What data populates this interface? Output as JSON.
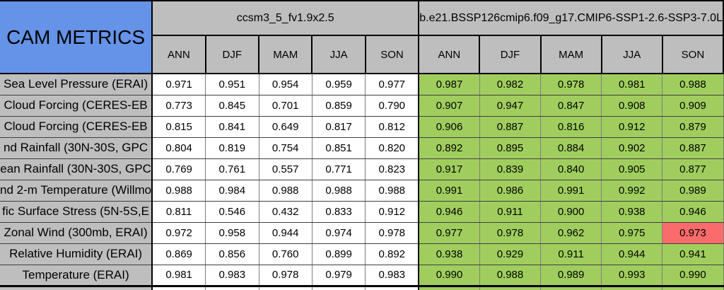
{
  "colors": {
    "blue": "#6493E8",
    "gray": "#BEBEBE",
    "green": "#A0CE5E",
    "red": "#FA6B6B"
  },
  "corner": {
    "title": "CAM METRICS"
  },
  "models": [
    {
      "name": "ccsm3_5_fv1.9x2.5",
      "seasons": [
        "ANN",
        "DJF",
        "MAM",
        "JJA",
        "SON"
      ]
    },
    {
      "name": "b.e21.BSSP126cmip6.f09_g17.CMIP6-SSP1-2.6-SSP3-7.0L",
      "seasons": [
        "ANN",
        "DJF",
        "MAM",
        "JJA",
        "SON"
      ]
    }
  ],
  "rows": [
    {
      "label": "Sea Level Pressure (ERAI)",
      "m1": [
        "0.971",
        "0.951",
        "0.954",
        "0.959",
        "0.977"
      ],
      "m2": [
        "0.987",
        "0.982",
        "0.978",
        "0.981",
        "0.988"
      ]
    },
    {
      "label": "Cloud Forcing (CERES-EB",
      "m1": [
        "0.773",
        "0.845",
        "0.701",
        "0.859",
        "0.790"
      ],
      "m2": [
        "0.907",
        "0.947",
        "0.847",
        "0.908",
        "0.909"
      ]
    },
    {
      "label": "Cloud Forcing (CERES-EB",
      "m1": [
        "0.815",
        "0.841",
        "0.649",
        "0.817",
        "0.812"
      ],
      "m2": [
        "0.906",
        "0.887",
        "0.816",
        "0.912",
        "0.879"
      ]
    },
    {
      "label": "nd Rainfall (30N-30S, GPC",
      "m1": [
        "0.804",
        "0.819",
        "0.754",
        "0.851",
        "0.820"
      ],
      "m2": [
        "0.892",
        "0.895",
        "0.884",
        "0.902",
        "0.887"
      ]
    },
    {
      "label": "ean Rainfall (30N-30S, GPC",
      "m1": [
        "0.769",
        "0.761",
        "0.557",
        "0.771",
        "0.823"
      ],
      "m2": [
        "0.917",
        "0.839",
        "0.840",
        "0.905",
        "0.877"
      ]
    },
    {
      "label": "nd 2-m Temperature (Willmo",
      "m1": [
        "0.988",
        "0.984",
        "0.988",
        "0.988",
        "0.988"
      ],
      "m2": [
        "0.991",
        "0.986",
        "0.991",
        "0.992",
        "0.989"
      ]
    },
    {
      "label": "fic Surface Stress (5N-5S,E",
      "m1": [
        "0.811",
        "0.546",
        "0.432",
        "0.833",
        "0.912"
      ],
      "m2": [
        "0.946",
        "0.911",
        "0.900",
        "0.938",
        "0.946"
      ]
    },
    {
      "label": "Zonal Wind (300mb, ERAI)",
      "m1": [
        "0.972",
        "0.958",
        "0.944",
        "0.974",
        "0.978"
      ],
      "m2": [
        "0.977",
        "0.978",
        "0.962",
        "0.975",
        "0.973"
      ]
    },
    {
      "label": "Relative Humidity (ERAI)",
      "m1": [
        "0.869",
        "0.856",
        "0.760",
        "0.899",
        "0.892"
      ],
      "m2": [
        "0.938",
        "0.929",
        "0.911",
        "0.944",
        "0.941"
      ]
    },
    {
      "label": "Temperature (ERAI)",
      "m1": [
        "0.981",
        "0.983",
        "0.978",
        "0.979",
        "0.983"
      ],
      "m2": [
        "0.990",
        "0.988",
        "0.989",
        "0.993",
        "0.990"
      ]
    }
  ],
  "highlight": {
    "description": "red highlighted cell",
    "row_label": "Zonal Wind (300mb, ERAI)",
    "season": "SON",
    "model": "b.e21.BSSP126cmip6.f09_g17.CMIP6-SSP1-2.6-SSP3-7.0L",
    "value": "0.973"
  }
}
